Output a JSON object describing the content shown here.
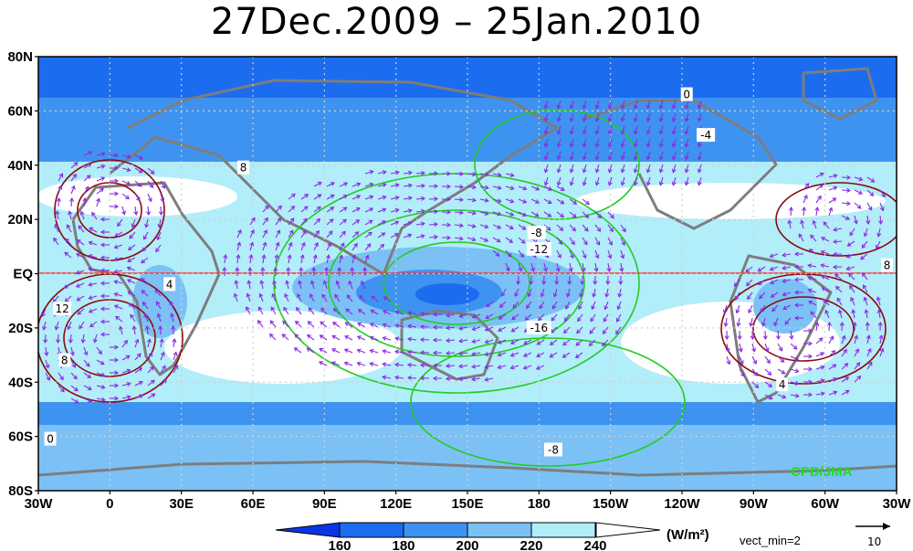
{
  "title": "27Dec.2009 – 25Jan.2010",
  "axes": {
    "lat_labels": [
      "80N",
      "60N",
      "40N",
      "20N",
      "EQ",
      "20S",
      "40S",
      "60S",
      "80S"
    ],
    "lat_values": [
      80,
      60,
      40,
      20,
      0,
      -20,
      -40,
      -60,
      -80
    ],
    "lon_labels": [
      "30W",
      "0",
      "30E",
      "60E",
      "90E",
      "120E",
      "150E",
      "180",
      "150W",
      "120W",
      "90W",
      "60W",
      "30W"
    ],
    "lon_values": [
      -30,
      0,
      30,
      60,
      90,
      120,
      150,
      180,
      210,
      240,
      270,
      300,
      330
    ]
  },
  "contour_labels": [
    {
      "text": "0",
      "lon": 242,
      "lat": 66
    },
    {
      "text": "-4",
      "lon": 250,
      "lat": 51
    },
    {
      "text": "8",
      "lon": 56,
      "lat": 39
    },
    {
      "text": "-8",
      "lon": 179,
      "lat": 15
    },
    {
      "text": "-12",
      "lon": 180,
      "lat": 9
    },
    {
      "text": "4",
      "lon": 25,
      "lat": -4
    },
    {
      "text": "12",
      "lon": -20,
      "lat": -13
    },
    {
      "text": "-16",
      "lon": 180,
      "lat": -20
    },
    {
      "text": "8",
      "lon": -19,
      "lat": -32
    },
    {
      "text": "4",
      "lon": 282,
      "lat": -41
    },
    {
      "text": "8",
      "lon": 326,
      "lat": 3
    },
    {
      "text": "0",
      "lon": -25,
      "lat": -61
    },
    {
      "text": "-8",
      "lon": 186,
      "lat": -65
    }
  ],
  "colorbar": {
    "ticks": [
      "160",
      "180",
      "200",
      "220",
      "240"
    ],
    "colors": [
      "#0b34e6",
      "#1c6cf0",
      "#3f93f0",
      "#7cc1f5",
      "#b2edfa",
      "#ffffff"
    ],
    "units": "(W/m²)"
  },
  "vector_legend": {
    "min_label": "vect_min=2",
    "ref_value": "10"
  },
  "credit": "CPD/JMA",
  "colors": {
    "olr_low": "#0b34e6",
    "olr_mid": "#3f93f0",
    "olr_high": "#b2edfa",
    "positive_contour": "#8b0a0a",
    "negative_contour": "#22cc22",
    "wind_vector": "#8a2be2",
    "equator_line": "#ff3333",
    "land": "#7d7d7d"
  }
}
